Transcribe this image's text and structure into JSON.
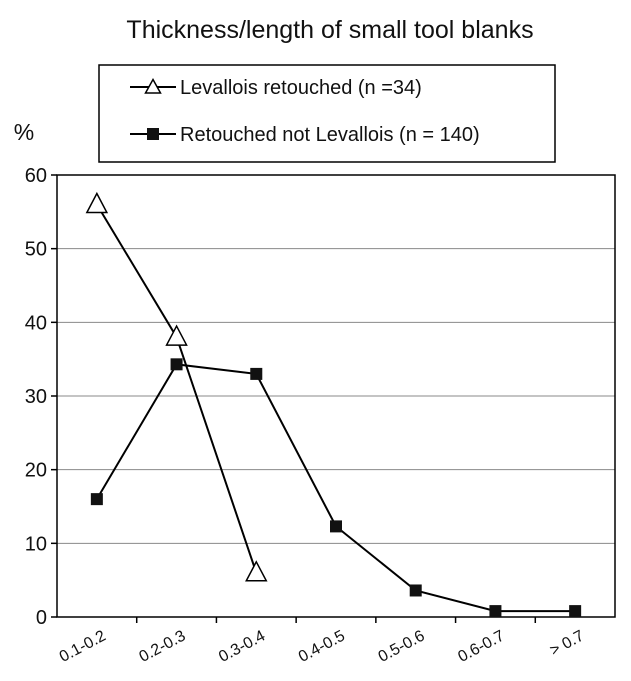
{
  "chart_data": {
    "type": "line",
    "title": "Thickness/length of small tool blanks",
    "xlabel": "",
    "ylabel": "%",
    "categories": [
      "0.1-0.2",
      "0.2-0.3",
      "0.3-0.4",
      "0.4-0.5",
      "0.5-0.6",
      "0.6-0.7",
      "> 0.7"
    ],
    "ylim": [
      0,
      60
    ],
    "yticks": [
      0,
      10,
      20,
      30,
      40,
      50,
      60
    ],
    "grid": true,
    "legend_position": "top",
    "series": [
      {
        "name": "Levallois retouched (n =34)",
        "marker": "open-triangle",
        "values": [
          56,
          38,
          6,
          null,
          null,
          null,
          null
        ]
      },
      {
        "name": "Retouched not Levallois (n = 140)",
        "marker": "filled-square",
        "values": [
          16,
          34.3,
          33,
          12.3,
          3.6,
          0.8,
          0.8
        ]
      }
    ]
  }
}
